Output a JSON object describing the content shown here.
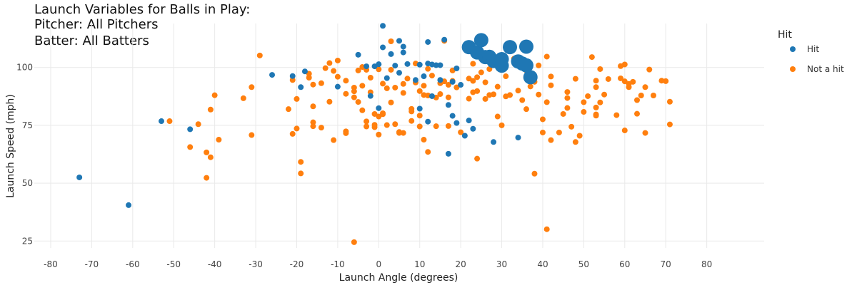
{
  "chart_data": {
    "type": "scatter",
    "title": [
      "Launch Variables for Balls in Play:",
      "Pitcher: All Pitchers",
      "Batter: All Batters"
    ],
    "xlabel": "Launch Angle (degrees)",
    "ylabel": "Launch Speed (mph)",
    "xlim": [
      -84,
      94
    ],
    "ylim": [
      22,
      119
    ],
    "xticks": [
      -80,
      -70,
      -60,
      -50,
      -40,
      -30,
      -20,
      -10,
      0,
      10,
      20,
      30,
      40,
      50,
      60,
      70,
      80
    ],
    "yticks": [
      25,
      50,
      75,
      100
    ],
    "grid": true,
    "legend": {
      "title": "Hit",
      "placement": "top-right"
    },
    "series": [
      {
        "name": "Hit",
        "color": "#1f77b4",
        "points": [
          [
            -73,
            52.5
          ],
          [
            -61,
            40.5
          ],
          [
            -53,
            76.8
          ],
          [
            -46,
            73.3
          ],
          [
            -26,
            96.8
          ],
          [
            -21,
            96.3
          ],
          [
            -19,
            91.5
          ],
          [
            -18,
            98.3
          ],
          [
            -10,
            91.7
          ],
          [
            -5,
            105.5
          ],
          [
            -3,
            100.5
          ],
          [
            -2,
            87.7
          ],
          [
            -1,
            100.5
          ],
          [
            0,
            101.4
          ],
          [
            0,
            82.4
          ],
          [
            1,
            118
          ],
          [
            1,
            108.7
          ],
          [
            2,
            95.4
          ],
          [
            3,
            105.8
          ],
          [
            4,
            100.8
          ],
          [
            5,
            111.5
          ],
          [
            5,
            97.7
          ],
          [
            6,
            109
          ],
          [
            6,
            106.5
          ],
          [
            7,
            101.5
          ],
          [
            9,
            94.6
          ],
          [
            10,
            101.2
          ],
          [
            10,
            82.2
          ],
          [
            11,
            96.2
          ],
          [
            12,
            111
          ],
          [
            12,
            101.7
          ],
          [
            12,
            76.6
          ],
          [
            13,
            101.3
          ],
          [
            13,
            87.6
          ],
          [
            14,
            101
          ],
          [
            15,
            101
          ],
          [
            15,
            94.6
          ],
          [
            16,
            112
          ],
          [
            17,
            83.8
          ],
          [
            17,
            62.7
          ],
          [
            18,
            93.8
          ],
          [
            18,
            79.1
          ],
          [
            19,
            76
          ],
          [
            19,
            99.6
          ],
          [
            20,
            92.5
          ],
          [
            21,
            70.5
          ],
          [
            22,
            77.1
          ],
          [
            23,
            73.5
          ],
          [
            28,
            67.8
          ],
          [
            34,
            69.7
          ],
          [
            37,
            94.5
          ]
        ],
        "large_points": [
          [
            22,
            108.8
          ],
          [
            24,
            106.5
          ],
          [
            25,
            111.8
          ],
          [
            26,
            104.5
          ],
          [
            27,
            104.6
          ],
          [
            28,
            102.8
          ],
          [
            30,
            103.6
          ],
          [
            30,
            100.8
          ],
          [
            32,
            108.8
          ],
          [
            34,
            102.6
          ],
          [
            35,
            101.7
          ],
          [
            36,
            100.9
          ],
          [
            36,
            109
          ],
          [
            37,
            95.8
          ]
        ]
      },
      {
        "name": "Not a hit",
        "color": "#ff7f0e",
        "points": [
          [
            -51,
            76.8
          ],
          [
            -46,
            65.6
          ],
          [
            -44,
            75.5
          ],
          [
            -42,
            52.3
          ],
          [
            -42,
            63.3
          ],
          [
            -41,
            61.2
          ],
          [
            -41,
            81.8
          ],
          [
            -40,
            88
          ],
          [
            -39,
            68.8
          ],
          [
            -33,
            86.7
          ],
          [
            -31,
            91.5
          ],
          [
            -31,
            70.8
          ],
          [
            -29,
            105.2
          ],
          [
            -22,
            82
          ],
          [
            -21,
            71.3
          ],
          [
            -21,
            94.6
          ],
          [
            -20,
            86.4
          ],
          [
            -20,
            73.6
          ],
          [
            -19,
            59.2
          ],
          [
            -19,
            54.2
          ],
          [
            -17,
            97.3
          ],
          [
            -17,
            95.6
          ],
          [
            -16,
            76.3
          ],
          [
            -16,
            74.6
          ],
          [
            -16,
            92.6
          ],
          [
            -16,
            83.2
          ],
          [
            -14,
            93.2
          ],
          [
            -14,
            74
          ],
          [
            -13,
            99.7
          ],
          [
            -12,
            101.9
          ],
          [
            -12,
            85.2
          ],
          [
            -11,
            98.5
          ],
          [
            -11,
            68.6
          ],
          [
            -10,
            103
          ],
          [
            -10,
            96
          ],
          [
            -8,
            94.3
          ],
          [
            -8,
            88.6
          ],
          [
            -8,
            72.4
          ],
          [
            -8,
            71.6
          ],
          [
            -6,
            91.3
          ],
          [
            -6,
            89.7
          ],
          [
            -6,
            87.1
          ],
          [
            -6,
            24.5
          ],
          [
            -5,
            85.1
          ],
          [
            -5,
            98.7
          ],
          [
            -4,
            100.2
          ],
          [
            -4,
            92.1
          ],
          [
            -4,
            81.5
          ],
          [
            -3,
            76.7
          ],
          [
            -3,
            74.5
          ],
          [
            -3,
            99
          ],
          [
            -2,
            95.6
          ],
          [
            -2,
            89.3
          ],
          [
            -1,
            79.9
          ],
          [
            -1,
            75.2
          ],
          [
            -1,
            74.2
          ],
          [
            0,
            99.2
          ],
          [
            0,
            78.8
          ],
          [
            0,
            71
          ],
          [
            1,
            93
          ],
          [
            1,
            80.2
          ],
          [
            1,
            79.8
          ],
          [
            2,
            91
          ],
          [
            2,
            75.1
          ],
          [
            3,
            111.3
          ],
          [
            3,
            99
          ],
          [
            3,
            84.9
          ],
          [
            4,
            91.3
          ],
          [
            4,
            75.5
          ],
          [
            5,
            72.1
          ],
          [
            5,
            71.7
          ],
          [
            6,
            92.9
          ],
          [
            6,
            89
          ],
          [
            6,
            71.7
          ],
          [
            7,
            95.2
          ],
          [
            8,
            82.1
          ],
          [
            8,
            81
          ],
          [
            8,
            76.9
          ],
          [
            9,
            101.7
          ],
          [
            9,
            93.5
          ],
          [
            10,
            89.8
          ],
          [
            10,
            79.2
          ],
          [
            10,
            74.5
          ],
          [
            11,
            92.1
          ],
          [
            11,
            88.1
          ],
          [
            11,
            68.8
          ],
          [
            12,
            99.4
          ],
          [
            12,
            87.9
          ],
          [
            12,
            63.5
          ],
          [
            13,
            96.5
          ],
          [
            14,
            87
          ],
          [
            14,
            74.6
          ],
          [
            15,
            93.2
          ],
          [
            15,
            88.5
          ],
          [
            16,
            111.5
          ],
          [
            16,
            94
          ],
          [
            17,
            92.5
          ],
          [
            17,
            87.1
          ],
          [
            17,
            74.7
          ],
          [
            18,
            94.2
          ],
          [
            18,
            98.7
          ],
          [
            19,
            91.4
          ],
          [
            20,
            72
          ],
          [
            21,
            108.3
          ],
          [
            22,
            95.2
          ],
          [
            22,
            86.5
          ],
          [
            23,
            101.6
          ],
          [
            23,
            94.2
          ],
          [
            23,
            89.3
          ],
          [
            24,
            95.8
          ],
          [
            24,
            60.6
          ],
          [
            24,
            89.8
          ],
          [
            25,
            103.7
          ],
          [
            25,
            97.9
          ],
          [
            26,
            93.6
          ],
          [
            26,
            86.4
          ],
          [
            27,
            99.3
          ],
          [
            27,
            88.1
          ],
          [
            28,
            88.4
          ],
          [
            29,
            78.8
          ],
          [
            29,
            91.7
          ],
          [
            30,
            75
          ],
          [
            30,
            99.1
          ],
          [
            31,
            96.2
          ],
          [
            31,
            87.5
          ],
          [
            32,
            88.1
          ],
          [
            33,
            103.8
          ],
          [
            34,
            90
          ],
          [
            35,
            85.9
          ],
          [
            36,
            98.7
          ],
          [
            36,
            82
          ],
          [
            37,
            95.4
          ],
          [
            37,
            91.8
          ],
          [
            38,
            93.8
          ],
          [
            38,
            54.1
          ],
          [
            39,
            100.9
          ],
          [
            39,
            88.3
          ],
          [
            40,
            71.9
          ],
          [
            40,
            77.6
          ],
          [
            41,
            104.7
          ],
          [
            41,
            85
          ],
          [
            41,
            30.1
          ],
          [
            42,
            68.6
          ],
          [
            42,
            96.1
          ],
          [
            42,
            92.3
          ],
          [
            44,
            71.9
          ],
          [
            45,
            79.9
          ],
          [
            46,
            89.4
          ],
          [
            46,
            86.8
          ],
          [
            46,
            82.5
          ],
          [
            47,
            74.4
          ],
          [
            48,
            67.8
          ],
          [
            48,
            95.1
          ],
          [
            49,
            70.5
          ],
          [
            50,
            85
          ],
          [
            50,
            80.8
          ],
          [
            51,
            87.6
          ],
          [
            52,
            104.5
          ],
          [
            53,
            94.3
          ],
          [
            53,
            91.5
          ],
          [
            53,
            82.7
          ],
          [
            53,
            79.7
          ],
          [
            53,
            79.2
          ],
          [
            54,
            99.3
          ],
          [
            54,
            84.9
          ],
          [
            55,
            88.3
          ],
          [
            56,
            95
          ],
          [
            58,
            79.4
          ],
          [
            59,
            100.6
          ],
          [
            59,
            95.3
          ],
          [
            60,
            101.3
          ],
          [
            60,
            72.8
          ],
          [
            60,
            94
          ],
          [
            61,
            92.9
          ],
          [
            61,
            91.5
          ],
          [
            62,
            93.8
          ],
          [
            63,
            85.9
          ],
          [
            63,
            80
          ],
          [
            64,
            87.9
          ],
          [
            65,
            91.5
          ],
          [
            65,
            71.7
          ],
          [
            66,
            99.1
          ],
          [
            67,
            87.9
          ],
          [
            69,
            94.3
          ],
          [
            70,
            94.1
          ],
          [
            71,
            85.2
          ],
          [
            71,
            75.4
          ]
        ]
      }
    ]
  }
}
